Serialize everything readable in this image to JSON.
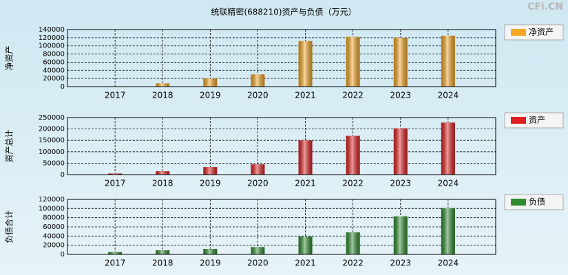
{
  "title": "统联精密(688210)资产与负债（万元）",
  "watermark": "CFi.CN",
  "chart_data": [
    {
      "type": "bar",
      "ylabel": "净资产",
      "categories": [
        "2017",
        "2018",
        "2019",
        "2020",
        "2021",
        "2022",
        "2023",
        "2024"
      ],
      "series": [
        {
          "name": "净资产",
          "color": "#f5a623",
          "values": [
            1000,
            8000,
            20000,
            30000,
            112000,
            122000,
            120000,
            125000
          ]
        }
      ],
      "ylim": [
        0,
        140000
      ],
      "yticks": [
        0,
        20000,
        40000,
        60000,
        80000,
        100000,
        120000,
        140000
      ],
      "grid": true
    },
    {
      "type": "bar",
      "ylabel": "资产总计",
      "categories": [
        "2017",
        "2018",
        "2019",
        "2020",
        "2021",
        "2022",
        "2023",
        "2024"
      ],
      "series": [
        {
          "name": "资产",
          "color": "#e02020",
          "values": [
            5000,
            15000,
            33000,
            45000,
            150000,
            170000,
            203000,
            228000
          ]
        }
      ],
      "ylim": [
        0,
        250000
      ],
      "yticks": [
        0,
        50000,
        100000,
        150000,
        200000,
        250000
      ],
      "grid": true
    },
    {
      "type": "bar",
      "ylabel": "负债合计",
      "categories": [
        "2017",
        "2018",
        "2019",
        "2020",
        "2021",
        "2022",
        "2023",
        "2024"
      ],
      "series": [
        {
          "name": "负债",
          "color": "#2e8b2e",
          "values": [
            5000,
            9000,
            12000,
            16000,
            39000,
            48000,
            83000,
            101000
          ]
        }
      ],
      "ylim": [
        0,
        120000
      ],
      "yticks": [
        0,
        20000,
        40000,
        60000,
        80000,
        100000,
        120000
      ],
      "grid": true
    }
  ]
}
